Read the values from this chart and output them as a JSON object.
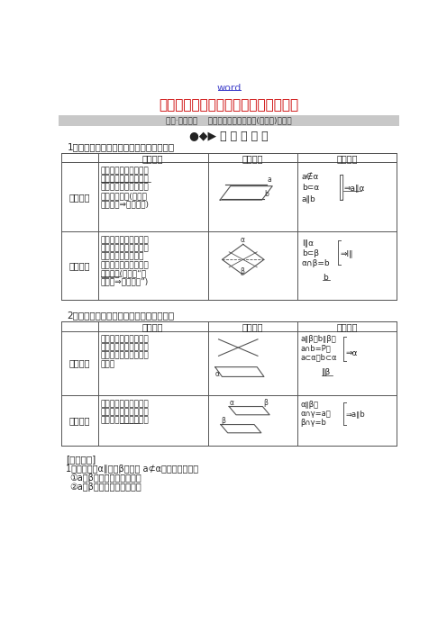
{
  "title": "第三节直线、平面平行的判定及其性质",
  "word_link": "word",
  "subtitle_bar": "课前·双基落实    高一数学一轮复习教案(含解析)苏教版",
  "section_header": "●◆▶ 必 过 教 材 关",
  "table1_title": "1．直线与平面平行的判定定理和性质定理",
  "table2_title": "2．平面与平面平行的判定定理和性质定理",
  "col_headers": [
    "",
    "文字语言",
    "图形语言",
    "符号语言"
  ],
  "t1r0_header": "判定定理",
  "t1r0_lines": [
    "如果平面外一条直线和",
    "这个平面内的一条直线",
    "平行，那么这条直线与",
    "这个平面平行(简记为",
    "线线平行⇒线面平行)"
  ],
  "t1r1_header": "性质定理",
  "t1r1_lines": [
    "如果一条直线和一个平",
    "面平行，经过这条直线",
    "的平面和这个平面相",
    "交，那么这条直线就和",
    "交线平行(简记为“线",
    "面平行⇒线线平行”)"
  ],
  "t2r0_header": "判定定理",
  "t2r0_lines": [
    "如果一个平面内有两条",
    "相交直线都平行于另一",
    "个平面，那么这两个平",
    "面平行"
  ],
  "t2r1_header": "性质定理",
  "t2r1_lines": [
    "如果两个平行平面同时",
    "和第三个平面相交，那",
    "么所得的两条交线平行"
  ],
  "exercise_section": "[小题体验]",
  "exercise1": "1．已知平面α∥平面β，直线 a⊄α，有下列命题：",
  "exercise1_items": [
    "①a与β内的所有直线平行；",
    "②a与β内无数条直线平行；"
  ],
  "bg_color": "#ffffff",
  "red_color": "#cc0000",
  "gray_bar_color": "#c8c8c8",
  "table_border_color": "#555555",
  "text_color": "#222222",
  "link_color": "#4444cc"
}
